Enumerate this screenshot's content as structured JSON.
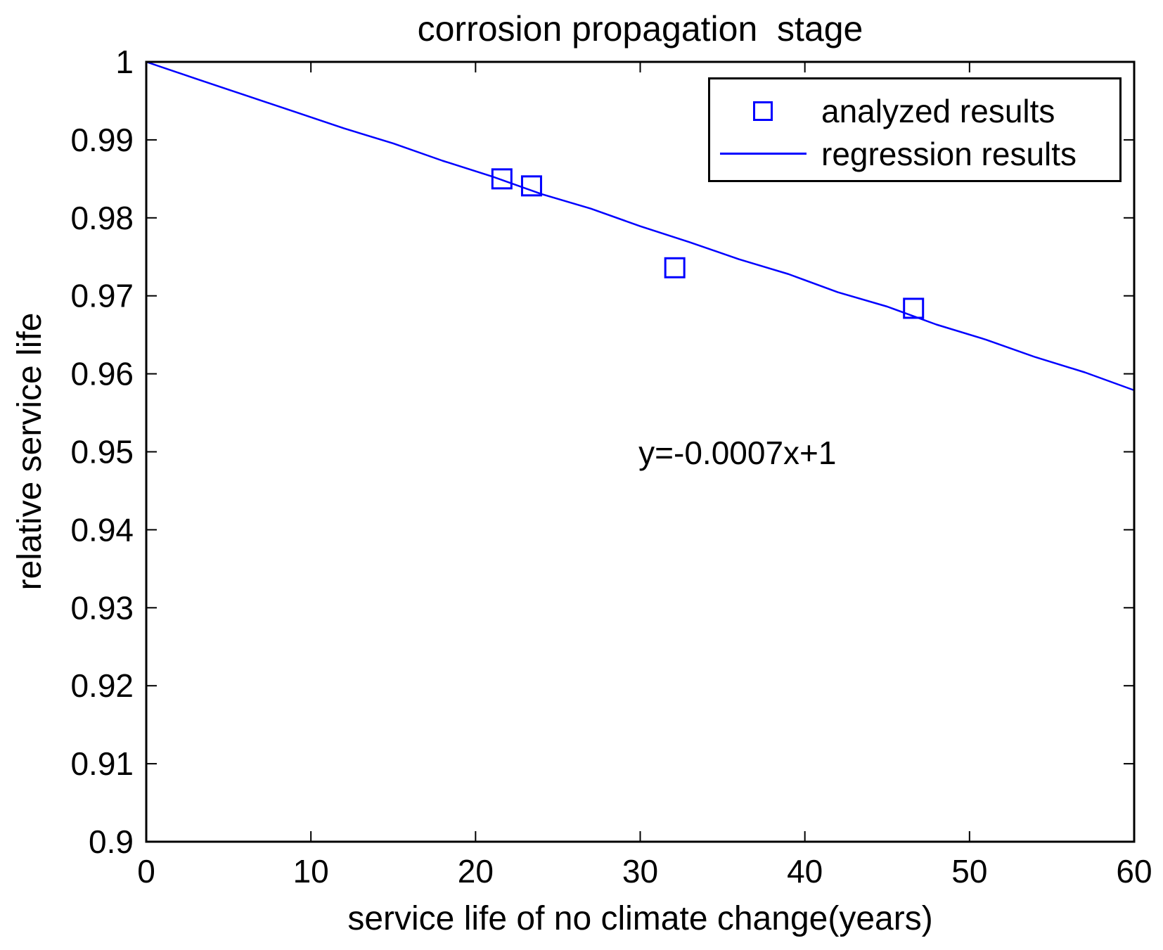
{
  "figure": {
    "background": "#FFFFFF",
    "colors": {
      "series_blue": "#0000FF",
      "axis_black": "#000000"
    }
  },
  "chart_data": {
    "type": "scatter",
    "title": "corrosion propagation  stage",
    "xlabel": "service life of no climate change(years)",
    "ylabel": "relative service life",
    "xlim": [
      0,
      60
    ],
    "ylim": [
      0.9,
      1.0
    ],
    "x_ticks": {
      "values": [
        0,
        10,
        20,
        30,
        40,
        50,
        60
      ],
      "labels": [
        "0",
        "10",
        "20",
        "30",
        "40",
        "50",
        "60"
      ]
    },
    "y_ticks": {
      "values": [
        0.9,
        0.91,
        0.92,
        0.93,
        0.94,
        0.95,
        0.96,
        0.97,
        0.98,
        0.99,
        1.0
      ],
      "labels": [
        "0.9",
        "0.91",
        "0.92",
        "0.93",
        "0.94",
        "0.95",
        "0.96",
        "0.97",
        "0.98",
        "0.99",
        "1"
      ]
    },
    "grid": false,
    "legend_position": "top-right",
    "series": [
      {
        "name": "analyzed results",
        "type": "scatter",
        "marker": "open-square",
        "color": "#0000FF",
        "points": [
          [
            21.6,
            0.985
          ],
          [
            23.4,
            0.9841
          ],
          [
            32.1,
            0.9736
          ],
          [
            46.6,
            0.9684
          ]
        ]
      },
      {
        "name": "regression results",
        "type": "line",
        "color": "#0000FF",
        "equation": "y = -0.0007x + 1",
        "points": [
          [
            0,
            1.0
          ],
          [
            3,
            0.99785
          ],
          [
            6,
            0.99573
          ],
          [
            9,
            0.99362
          ],
          [
            12,
            0.99148
          ],
          [
            15,
            0.98955
          ],
          [
            18,
            0.98732
          ],
          [
            21,
            0.98531
          ],
          [
            24,
            0.98305
          ],
          [
            27,
            0.98118
          ],
          [
            30,
            0.97893
          ],
          [
            33,
            0.97688
          ],
          [
            36,
            0.97469
          ],
          [
            39,
            0.97279
          ],
          [
            42,
            0.97046
          ],
          [
            45,
            0.96862
          ],
          [
            48,
            0.96631
          ],
          [
            51,
            0.96438
          ],
          [
            54,
            0.96214
          ],
          [
            57,
            0.96019
          ],
          [
            60,
            0.95789
          ]
        ]
      }
    ],
    "annotation": {
      "text": "y=-0.0007x+1",
      "x": 29.9,
      "y": 0.949
    }
  }
}
